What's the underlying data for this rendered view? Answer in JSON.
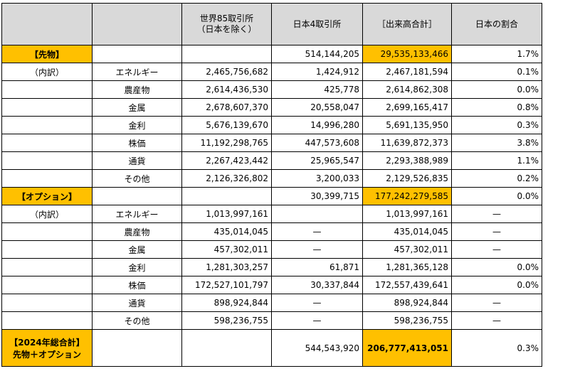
{
  "header": {
    "col0": "",
    "col1": "",
    "col2_line1": "世界85取引所",
    "col2_line2": "（日本を除く）",
    "col3": "日本4取引所",
    "col4": "［出来高合計］",
    "col5": "日本の割合"
  },
  "futures": {
    "label": "【先物】",
    "japan": "514,144,205",
    "total": "29,535,133,466",
    "ratio": "1.7%",
    "breakdown_label": "（内訳）",
    "rows": [
      {
        "category": "エネルギー",
        "world": "2,465,756,682",
        "japan": "1,424,912",
        "total": "2,467,181,594",
        "ratio": "0.1%"
      },
      {
        "category": "農産物",
        "world": "2,614,436,530",
        "japan": "425,778",
        "total": "2,614,862,308",
        "ratio": "0.0%"
      },
      {
        "category": "金属",
        "world": "2,678,607,370",
        "japan": "20,558,047",
        "total": "2,699,165,417",
        "ratio": "0.8%"
      },
      {
        "category": "金利",
        "world": "5,676,139,670",
        "japan": "14,996,280",
        "total": "5,691,135,950",
        "ratio": "0.3%"
      },
      {
        "category": "株価",
        "world": "11,192,298,765",
        "japan": "447,573,608",
        "total": "11,639,872,373",
        "ratio": "3.8%"
      },
      {
        "category": "通貨",
        "world": "2,267,423,442",
        "japan": "25,965,547",
        "total": "2,293,388,989",
        "ratio": "1.1%"
      },
      {
        "category": "その他",
        "world": "2,126,326,802",
        "japan": "3,200,033",
        "total": "2,129,526,835",
        "ratio": "0.2%"
      }
    ]
  },
  "options": {
    "label": "【オプション】",
    "japan": "30,399,715",
    "total": "177,242,279,585",
    "ratio": "0.0%",
    "breakdown_label": "（内訳）",
    "rows": [
      {
        "category": "エネルギー",
        "world": "1,013,997,161",
        "japan": "",
        "total": "1,013,997,161",
        "ratio": "—"
      },
      {
        "category": "農産物",
        "world": "435,014,045",
        "japan": "—",
        "total": "435,014,045",
        "ratio": "—"
      },
      {
        "category": "金属",
        "world": "457,302,011",
        "japan": "—",
        "total": "457,302,011",
        "ratio": "—"
      },
      {
        "category": "金利",
        "world": "1,281,303,257",
        "japan": "61,871",
        "total": "1,281,365,128",
        "ratio": "0.0%"
      },
      {
        "category": "株価",
        "world": "172,527,101,797",
        "japan": "30,337,844",
        "total": "172,557,439,641",
        "ratio": "0.0%"
      },
      {
        "category": "通貨",
        "world": "898,924,844",
        "japan": "—",
        "total": "898,924,844",
        "ratio": "—"
      },
      {
        "category": "その他",
        "world": "598,236,755",
        "japan": "—",
        "total": "598,236,755",
        "ratio": "—"
      }
    ]
  },
  "grand_total": {
    "label_line1": "【2024年総合計】",
    "label_line2": "先物＋オプション",
    "japan": "544,543,920",
    "total": "206,777,413,051",
    "ratio": "0.3%"
  }
}
